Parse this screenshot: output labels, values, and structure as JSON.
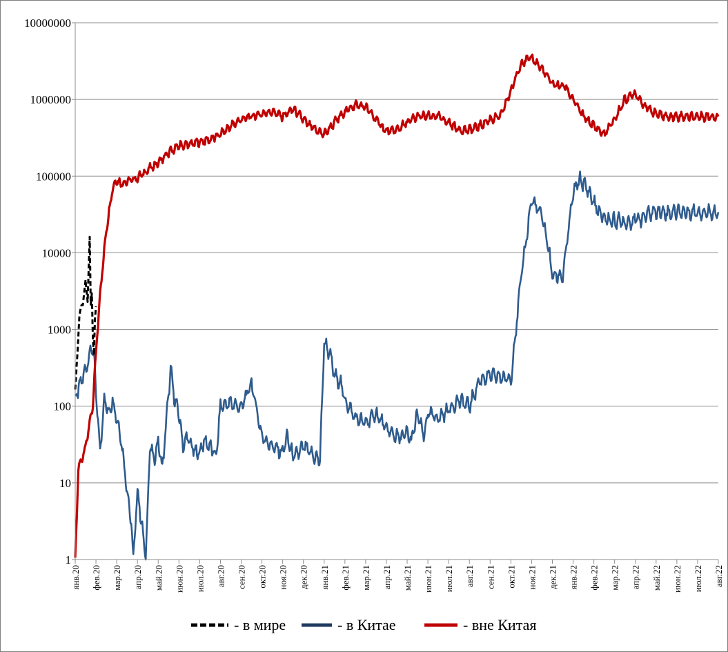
{
  "chart_data": {
    "type": "line",
    "y_scale": "log",
    "ylim": [
      1,
      10000000
    ],
    "y_ticks": [
      1,
      10,
      100,
      1000,
      10000,
      100000,
      1000000,
      10000000
    ],
    "y_tick_labels": [
      "1",
      "10",
      "100",
      "1000",
      "10000",
      "100000",
      "1000000",
      "10000000"
    ],
    "x_tick_labels": [
      "янв.20",
      "фев.20",
      "мар.20",
      "апр.20",
      "май.20",
      "июн.20",
      "июл.20",
      "авг.20",
      "сен.20",
      "окт.20",
      "ноя.20",
      "дек.20",
      "янв.21",
      "фев.21",
      "мар.21",
      "апр.21",
      "май.21",
      "июн.21",
      "июл.21",
      "авг.21",
      "сен.21",
      "окт.21",
      "ноя.21",
      "дек.21",
      "янв.22",
      "фев.22",
      "мар.22",
      "апр.22",
      "май.22",
      "июн.22",
      "июл.22",
      "авг.22"
    ],
    "grid": true,
    "legend_position": "bottom",
    "series": [
      {
        "name": "- в мире",
        "color": "#000000",
        "style": "dashed",
        "x": [
          0,
          0.2,
          0.4,
          0.5,
          0.6,
          0.7,
          0.75,
          0.8,
          0.85,
          0.9,
          0.95,
          1.0
        ],
        "y": [
          150,
          1500,
          2500,
          4000,
          2500,
          15000,
          2000,
          3000,
          800,
          500,
          1500,
          2000
        ]
      },
      {
        "name": "-  в Китае",
        "color": "#2e5b8d",
        "style": "solid",
        "x": [
          0.0,
          0.2,
          0.5,
          0.8,
          0.9,
          1.0,
          1.2,
          1.4,
          1.6,
          1.8,
          2.0,
          2.2,
          2.5,
          2.7,
          2.8,
          3.0,
          3.2,
          3.4,
          3.6,
          3.8,
          4.0,
          4.2,
          4.4,
          4.6,
          4.8,
          5.0,
          5.2,
          5.4,
          5.6,
          5.8,
          6.0,
          6.2,
          6.5,
          6.8,
          7.0,
          7.5,
          8.0,
          8.5,
          9.0,
          9.5,
          10.0,
          10.2,
          10.5,
          10.8,
          11.0,
          11.5,
          11.8,
          12.0,
          12.3,
          12.5,
          12.8,
          13.0,
          13.5,
          14.0,
          14.5,
          15.0,
          15.5,
          15.8,
          16.0,
          16.2,
          16.5,
          16.8,
          17.0,
          17.5,
          18.0,
          18.5,
          19.0,
          19.5,
          20.0,
          20.5,
          21.0,
          21.5,
          22.0,
          22.5,
          22.8,
          23.0,
          23.5,
          24.0,
          24.3,
          24.5,
          24.8,
          25.0,
          25.2,
          25.4,
          25.7,
          26.0,
          26.3,
          26.6,
          27.0,
          27.3,
          27.6,
          28.0,
          28.3,
          28.6,
          29.0,
          29.3,
          29.6,
          30.0,
          30.5,
          31.0
        ],
        "y": [
          120,
          180,
          300,
          600,
          450,
          150,
          25,
          130,
          80,
          120,
          70,
          40,
          8,
          3,
          1,
          8,
          3,
          1,
          30,
          20,
          35,
          15,
          70,
          300,
          120,
          80,
          30,
          40,
          30,
          25,
          25,
          35,
          30,
          22,
          100,
          110,
          95,
          200,
          40,
          30,
          25,
          40,
          22,
          25,
          30,
          22,
          20,
          700,
          450,
          250,
          200,
          120,
          70,
          60,
          80,
          50,
          40,
          40,
          45,
          35,
          80,
          40,
          80,
          70,
          90,
          120,
          100,
          220,
          250,
          240,
          220,
          5000,
          50000,
          30000,
          12000,
          5000,
          5000,
          60000,
          90000,
          80000,
          60000,
          45000,
          35000,
          30000,
          27000,
          26000,
          26000,
          25000,
          27000,
          28000,
          32000,
          35000,
          34000,
          33000,
          35000,
          34000,
          34000,
          34000,
          34000,
          34000
        ]
      },
      {
        "name": "- вне Китая",
        "color": "#c00000",
        "style": "solid",
        "x": [
          0.0,
          0.15,
          0.3,
          0.5,
          0.7,
          0.85,
          1.0,
          1.2,
          1.5,
          1.8,
          2.0,
          2.2,
          2.5,
          3.0,
          3.5,
          4.0,
          4.5,
          5.0,
          5.5,
          6.0,
          6.5,
          7.0,
          7.5,
          8.0,
          8.5,
          9.0,
          9.5,
          10.0,
          10.5,
          11.0,
          11.3,
          11.6,
          12.0,
          12.5,
          13.0,
          13.5,
          14.0,
          14.5,
          15.0,
          15.5,
          16.0,
          16.5,
          17.0,
          17.5,
          18.0,
          18.5,
          19.0,
          19.5,
          20.0,
          20.5,
          21.0,
          21.5,
          22.0,
          22.5,
          23.0,
          23.3,
          23.6,
          24.0,
          24.5,
          25.0,
          25.5,
          26.0,
          26.5,
          27.0,
          27.5,
          28.0,
          28.5,
          29.0,
          29.5,
          30.0,
          30.5,
          31.0
        ],
        "y": [
          1,
          15,
          20,
          30,
          60,
          100,
          500,
          3000,
          20000,
          70000,
          90000,
          80000,
          85000,
          95000,
          120000,
          150000,
          200000,
          250000,
          260000,
          280000,
          300000,
          350000,
          450000,
          550000,
          600000,
          650000,
          700000,
          600000,
          750000,
          550000,
          450000,
          400000,
          350000,
          500000,
          700000,
          850000,
          800000,
          550000,
          380000,
          400000,
          500000,
          600000,
          600000,
          600000,
          500000,
          400000,
          400000,
          450000,
          550000,
          600000,
          1300000,
          3000000,
          3500000,
          2500000,
          1600000,
          1500000,
          1500000,
          1000000,
          600000,
          450000,
          350000,
          550000,
          1000000,
          1200000,
          800000,
          650000,
          600000,
          600000,
          600000,
          600000,
          600000,
          600000
        ]
      }
    ]
  }
}
